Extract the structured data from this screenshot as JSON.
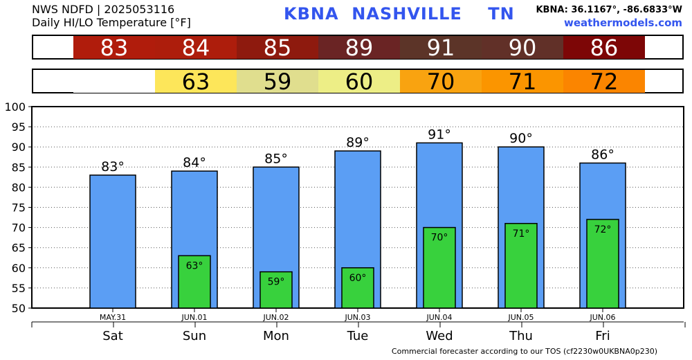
{
  "header": {
    "line1": "NWS NDFD | 2025053116",
    "line2": "Daily HI/LO Temperature [°F]",
    "station": "KBNA",
    "city": "NASHVILLE",
    "state": "TN",
    "coords": "KBNA: 36.1167°, -86.6833°W",
    "site": "weathermodels.com"
  },
  "hi_strip": [
    {
      "value": "83",
      "color": "#b01c0c"
    },
    {
      "value": "84",
      "color": "#ad1d0c"
    },
    {
      "value": "85",
      "color": "#8e1a0e"
    },
    {
      "value": "89",
      "color": "#6a2424"
    },
    {
      "value": "91",
      "color": "#5c3428"
    },
    {
      "value": "90",
      "color": "#613028"
    },
    {
      "value": "86",
      "color": "#7d0606"
    }
  ],
  "lo_strip": [
    {
      "value": "",
      "color": "#ffffff"
    },
    {
      "value": "63",
      "color": "#fde65a"
    },
    {
      "value": "59",
      "color": "#e0de8e"
    },
    {
      "value": "60",
      "color": "#edee86"
    },
    {
      "value": "70",
      "color": "#f9a310"
    },
    {
      "value": "71",
      "color": "#fb9500"
    },
    {
      "value": "72",
      "color": "#fb8500"
    }
  ],
  "chart_data": {
    "type": "bar",
    "title": "Daily HI/LO Temperature [°F]",
    "xlabel": "",
    "ylabel": "",
    "ylim": [
      50,
      100
    ],
    "yticks": [
      50,
      55,
      60,
      65,
      70,
      75,
      80,
      85,
      90,
      95,
      100
    ],
    "grid": "horizontal-dotted",
    "legend": "none",
    "dates": [
      "MAY.31",
      "JUN.01",
      "JUN.02",
      "JUN.03",
      "JUN.04",
      "JUN.05",
      "JUN.06"
    ],
    "days": [
      "Sat",
      "Sun",
      "Mon",
      "Tue",
      "Wed",
      "Thu",
      "Fri"
    ],
    "series": [
      {
        "name": "HI",
        "values": [
          83,
          84,
          85,
          89,
          91,
          90,
          86
        ],
        "color": "#5b9ef4",
        "labels": [
          "83°",
          "84°",
          "85°",
          "89°",
          "91°",
          "90°",
          "86°"
        ]
      },
      {
        "name": "LO",
        "values": [
          null,
          63,
          59,
          60,
          70,
          71,
          72
        ],
        "color": "#38d13d",
        "labels": [
          "",
          "63°",
          "59°",
          "60°",
          "70°",
          "71°",
          "72°"
        ]
      }
    ]
  },
  "footer": "Commercial forecaster according to our TOS (cf2230w0UKBNA0p230)"
}
